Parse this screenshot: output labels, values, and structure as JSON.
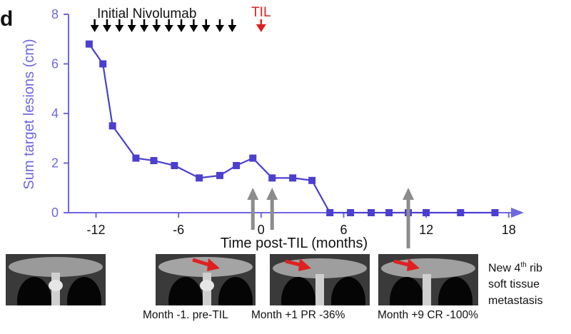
{
  "panel_label": "d",
  "chart_data": {
    "type": "line",
    "title": "",
    "xlabel": "Time post-TIL (months)",
    "ylabel": "Sum target lesions (cm)",
    "xlim": [
      -14,
      19
    ],
    "ylim": [
      0,
      8
    ],
    "xticks": [
      -12,
      -6,
      0,
      6,
      12,
      18
    ],
    "yticks": [
      0,
      2,
      4,
      6,
      8
    ],
    "series": [
      {
        "color": "#4b3fd0",
        "marker": "square",
        "x": [
          -12.5,
          -11.5,
          -10.8,
          -9.1,
          -7.8,
          -6.3,
          -4.5,
          -3.0,
          -1.8,
          -0.6,
          0.8,
          2.3,
          3.7,
          5.0,
          6.5,
          8.0,
          9.3,
          10.7,
          12.0,
          14.5,
          17.0
        ],
        "y": [
          6.8,
          6.0,
          3.5,
          2.2,
          2.1,
          1.9,
          1.4,
          1.5,
          1.9,
          2.2,
          1.4,
          1.4,
          1.3,
          0,
          0,
          0,
          0,
          0,
          0,
          0,
          0
        ]
      }
    ],
    "annotations": {
      "nivolumab_label": "Initial Nivolumab",
      "nivolumab_doses_x": [
        -12.1,
        -11.2,
        -10.3,
        -9.4,
        -8.5,
        -7.6,
        -6.7,
        -5.8,
        -4.9,
        -4.0,
        -3.0,
        -2.1
      ],
      "til_label": "TIL",
      "til_x": 0.0,
      "imaging_arrows_x": [
        -0.6,
        0.8,
        10.7
      ]
    },
    "colors": {
      "series": "#4b3fd0",
      "axis": "#6f67e0",
      "ylabel": "#6f67e0",
      "til": "#e02020",
      "nivolumab_arrow": "#000000",
      "imaging_arrow": "#8c8c8c"
    }
  },
  "images": [
    {
      "caption": "Month -1. pre-TIL",
      "has_red_arrow": false
    },
    {
      "caption": "Month +1 PR -36%",
      "has_red_arrow": true
    },
    {
      "caption": "Month +9 CR -100%",
      "has_red_arrow": true
    },
    {
      "caption": "",
      "has_red_arrow": true
    }
  ],
  "new_metastasis": {
    "line1_pre": "New 4",
    "line1_sup": "th",
    "line1_post": " rib",
    "line2": "soft tissue",
    "line3": "metastasis"
  }
}
